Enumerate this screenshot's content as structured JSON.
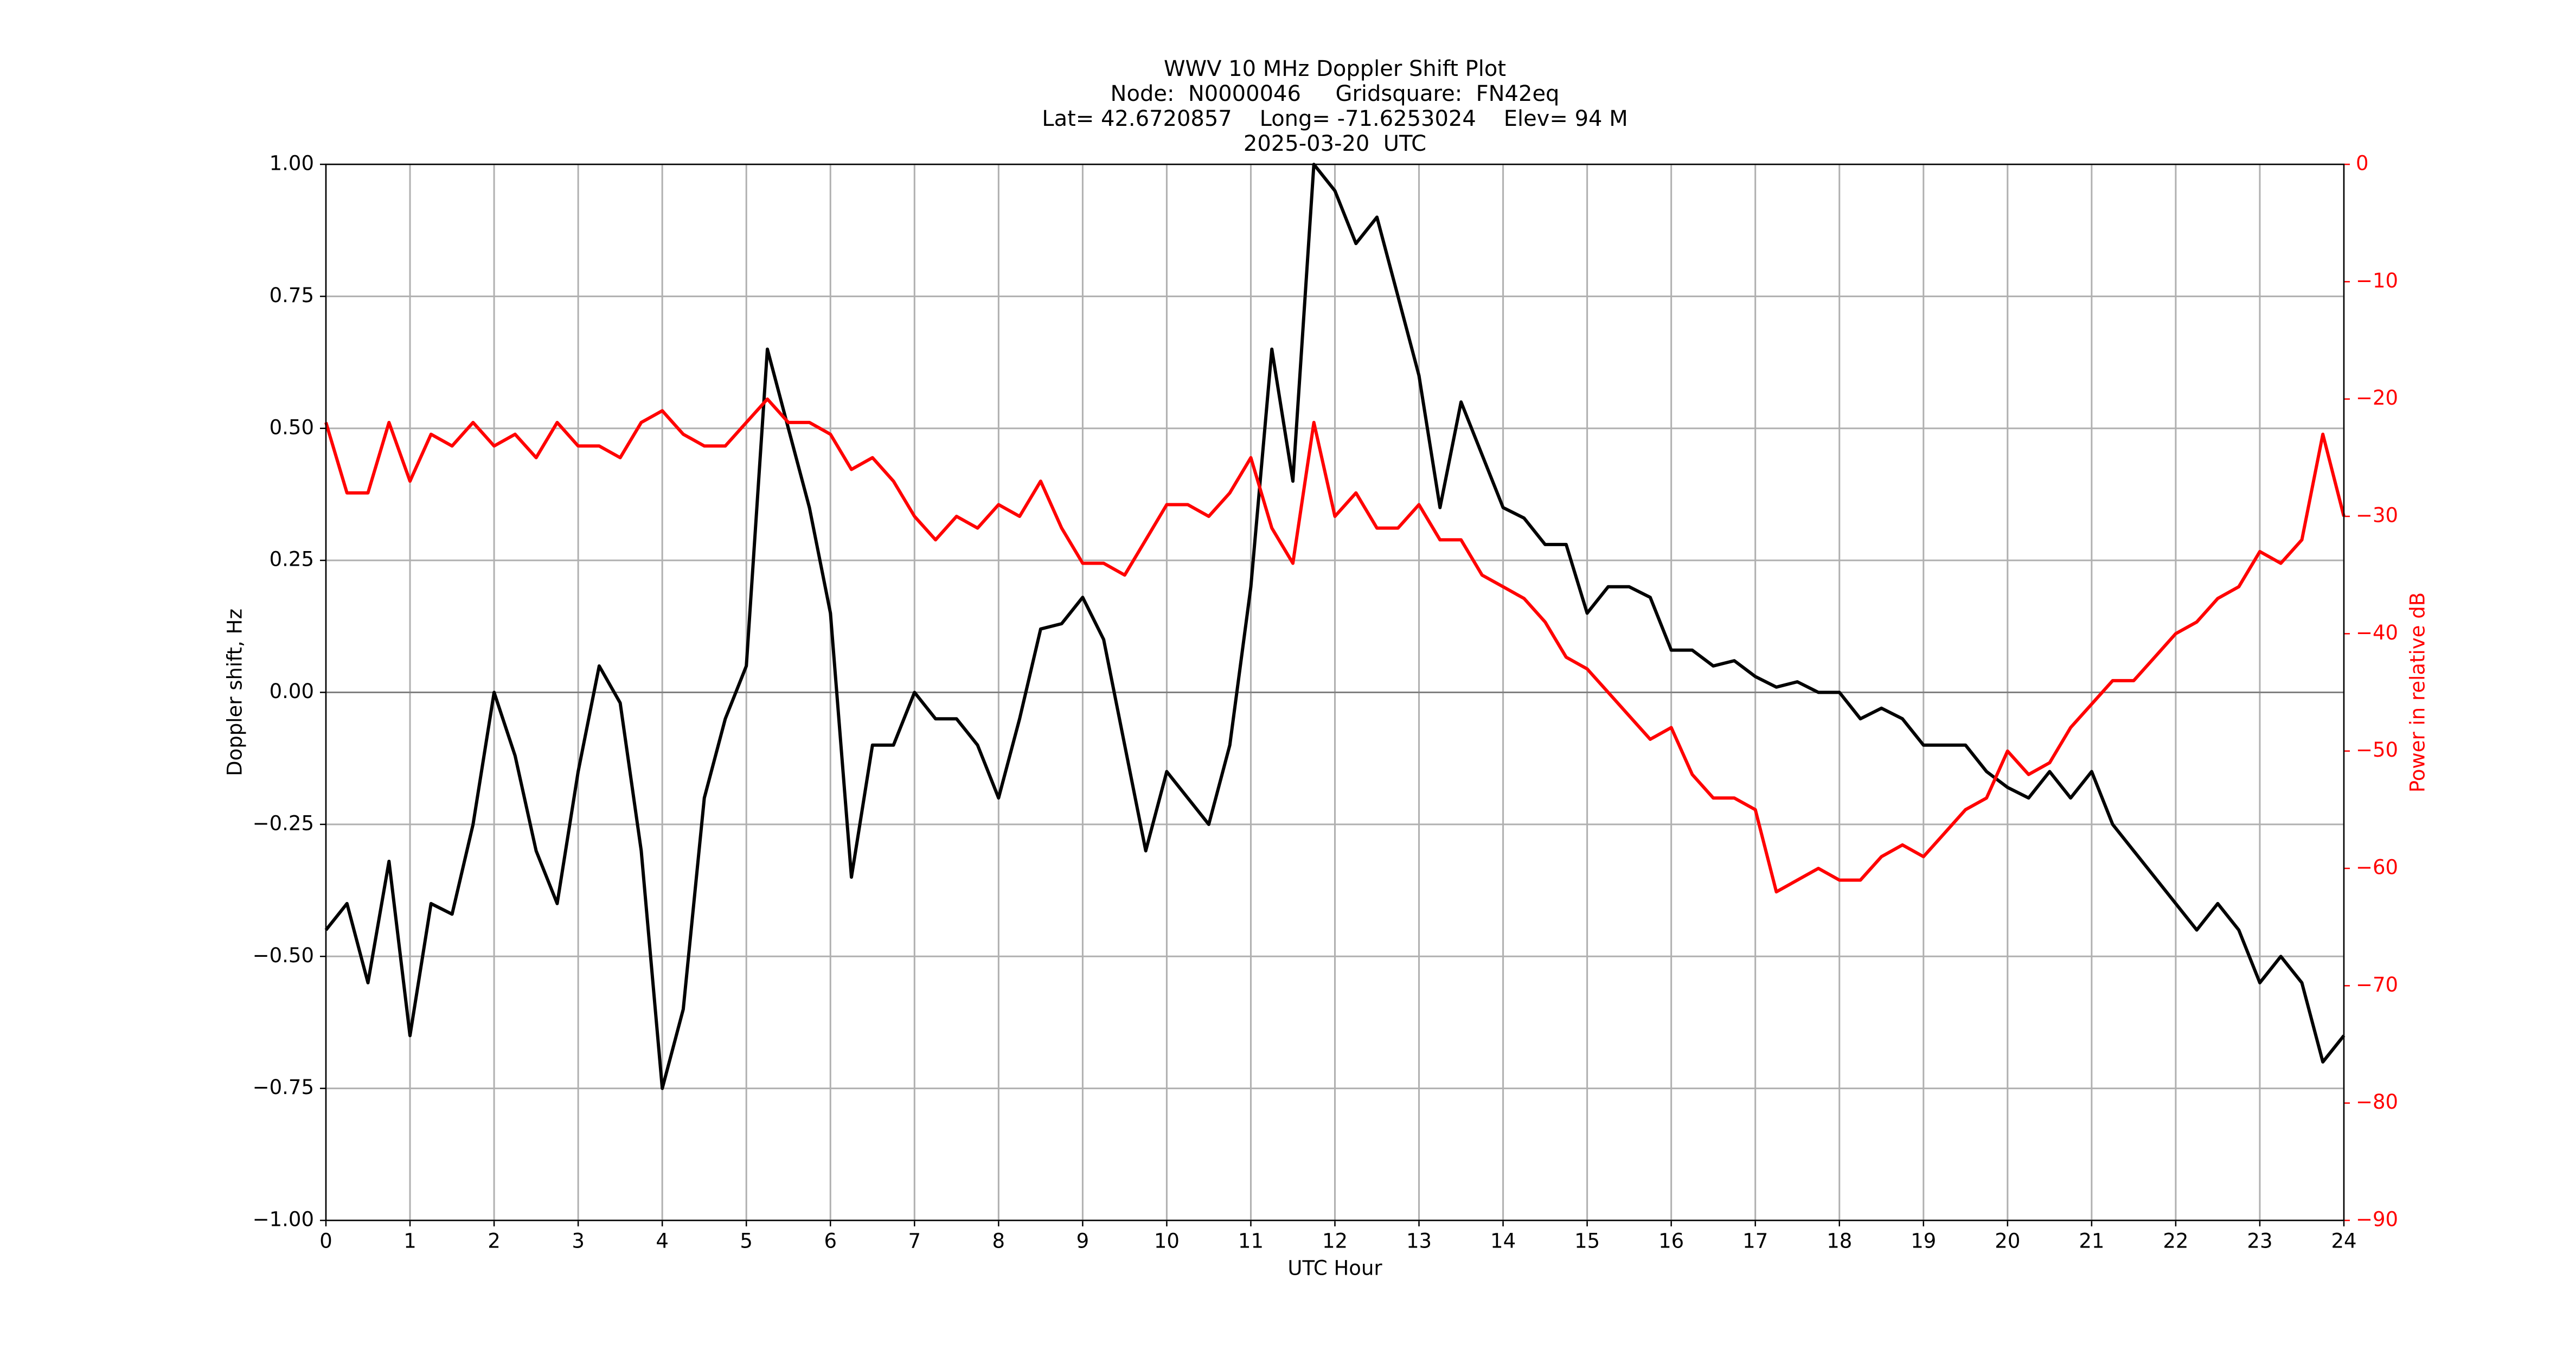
{
  "chart_data": {
    "type": "line",
    "title": [
      "WWV 10 MHz Doppler Shift Plot",
      "Node:  N0000046     Gridsquare:  FN42eq",
      "Lat= 42.6720857    Long= -71.6253024    Elev= 94 M",
      "2025-03-20  UTC"
    ],
    "xlabel": "UTC Hour",
    "ylabel": "Doppler shift, Hz",
    "y2label": "Power in relative dB",
    "x": [
      0,
      0.25,
      0.5,
      0.75,
      1,
      1.25,
      1.5,
      1.75,
      2,
      2.25,
      2.5,
      2.75,
      3,
      3.25,
      3.5,
      3.75,
      4,
      4.25,
      4.5,
      4.75,
      5,
      5.25,
      5.5,
      5.75,
      6,
      6.25,
      6.5,
      6.75,
      7,
      7.25,
      7.5,
      7.75,
      8,
      8.25,
      8.5,
      8.75,
      9,
      9.25,
      9.5,
      9.75,
      10,
      10.25,
      10.5,
      10.75,
      11,
      11.25,
      11.5,
      11.75,
      12,
      12.25,
      12.5,
      12.75,
      13,
      13.25,
      13.5,
      13.75,
      14,
      14.25,
      14.5,
      14.75,
      15,
      15.25,
      15.5,
      15.75,
      16,
      16.25,
      16.5,
      16.75,
      17,
      17.25,
      17.5,
      17.75,
      18,
      18.25,
      18.5,
      18.75,
      19,
      19.25,
      19.5,
      19.75,
      20,
      20.25,
      20.5,
      20.75,
      21,
      21.25,
      21.5,
      21.75,
      22,
      22.25,
      22.5,
      22.75,
      23,
      23.25,
      23.5,
      23.75,
      24
    ],
    "series": [
      {
        "name": "Doppler shift",
        "color": "#000000",
        "values": [
          -0.45,
          -0.4,
          -0.55,
          -0.32,
          -0.65,
          -0.4,
          -0.42,
          -0.25,
          0.0,
          -0.12,
          -0.3,
          -0.4,
          -0.15,
          0.05,
          -0.02,
          -0.3,
          -0.75,
          -0.6,
          -0.2,
          -0.05,
          0.05,
          0.65,
          0.5,
          0.35,
          0.15,
          -0.35,
          -0.1,
          -0.1,
          0.0,
          -0.05,
          -0.05,
          -0.1,
          -0.2,
          -0.05,
          0.12,
          0.13,
          0.18,
          0.1,
          -0.1,
          -0.3,
          -0.15,
          -0.2,
          -0.25,
          -0.1,
          0.2,
          0.65,
          0.4,
          1.0,
          0.95,
          0.85,
          0.9,
          0.75,
          0.6,
          0.35,
          0.55,
          0.45,
          0.35,
          0.33,
          0.28,
          0.28,
          0.15,
          0.2,
          0.2,
          0.18,
          0.08,
          0.08,
          0.05,
          0.06,
          0.03,
          0.01,
          0.02,
          0.0,
          0.0,
          -0.05,
          -0.03,
          -0.05,
          -0.1,
          -0.1,
          -0.1,
          -0.15,
          -0.18,
          -0.2,
          -0.15,
          -0.2,
          -0.15,
          -0.25,
          -0.3,
          -0.35,
          -0.4,
          -0.45,
          -0.4,
          -0.45,
          -0.55,
          -0.5,
          -0.55,
          -0.7,
          -0.65
        ]
      },
      {
        "name": "Power",
        "color": "#ff0000",
        "axis": "y2",
        "values": [
          -22,
          -28,
          -28,
          -22,
          -27,
          -23,
          -24,
          -22,
          -24,
          -23,
          -25,
          -22,
          -24,
          -24,
          -25,
          -22,
          -21,
          -23,
          -24,
          -24,
          -22,
          -20,
          -22,
          -22,
          -23,
          -26,
          -25,
          -27,
          -30,
          -32,
          -30,
          -31,
          -29,
          -30,
          -27,
          -31,
          -34,
          -34,
          -35,
          -32,
          -29,
          -29,
          -30,
          -28,
          -25,
          -31,
          -34,
          -22,
          -30,
          -28,
          -31,
          -31,
          -29,
          -32,
          -32,
          -35,
          -36,
          -37,
          -39,
          -42,
          -43,
          -45,
          -47,
          -49,
          -48,
          -52,
          -54,
          -54,
          -55,
          -62,
          -61,
          -60,
          -61,
          -61,
          -59,
          -58,
          -59,
          -57,
          -55,
          -54,
          -50,
          -52,
          -51,
          -48,
          -46,
          -44,
          -44,
          -42,
          -40,
          -39,
          -37,
          -36,
          -33,
          -34,
          -32,
          -23,
          -30
        ]
      }
    ],
    "xlim": [
      0,
      24
    ],
    "xticks": [
      0,
      1,
      2,
      3,
      4,
      5,
      6,
      7,
      8,
      9,
      10,
      11,
      12,
      13,
      14,
      15,
      16,
      17,
      18,
      19,
      20,
      21,
      22,
      23,
      24
    ],
    "ylim": [
      -1,
      1
    ],
    "yticks": [
      {
        "value": -1,
        "label": "−1.00"
      },
      {
        "value": -0.75,
        "label": "−0.75"
      },
      {
        "value": -0.5,
        "label": "−0.50"
      },
      {
        "value": -0.25,
        "label": "−0.25"
      },
      {
        "value": 0,
        "label": "0.00"
      },
      {
        "value": 0.25,
        "label": "0.25"
      },
      {
        "value": 0.5,
        "label": "0.50"
      },
      {
        "value": 0.75,
        "label": "0.75"
      },
      {
        "value": 1,
        "label": "1.00"
      }
    ],
    "y2lim": [
      -90,
      0
    ],
    "y2ticks": [
      {
        "value": -90,
        "label": "−90"
      },
      {
        "value": -80,
        "label": "−80"
      },
      {
        "value": -70,
        "label": "−70"
      },
      {
        "value": -60,
        "label": "−60"
      },
      {
        "value": -50,
        "label": "−50"
      },
      {
        "value": -40,
        "label": "−40"
      },
      {
        "value": -30,
        "label": "−30"
      },
      {
        "value": -20,
        "label": "−20"
      },
      {
        "value": -10,
        "label": "−10"
      },
      0
    ],
    "grid": true
  }
}
